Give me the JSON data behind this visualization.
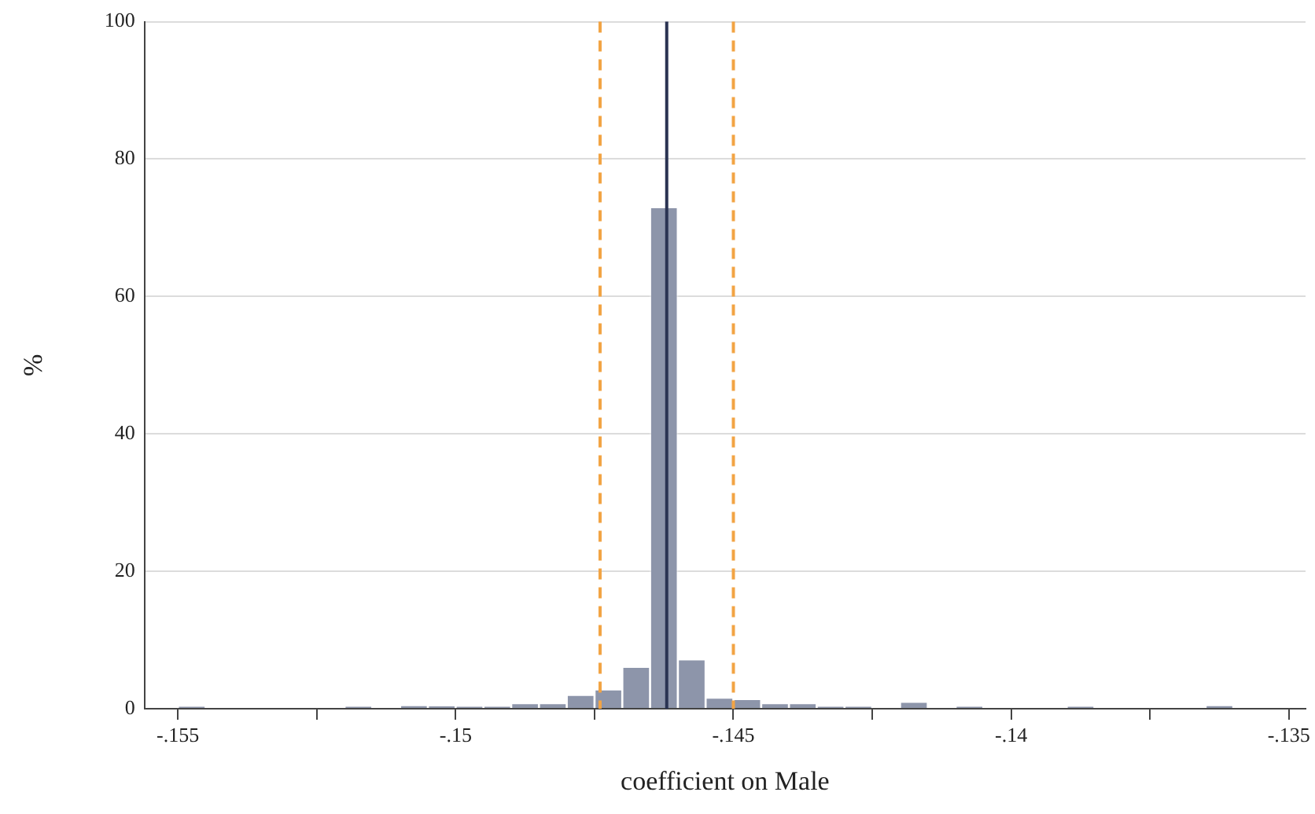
{
  "chart_data": {
    "type": "histogram",
    "xlabel": "coefficient on Male",
    "ylabel": "%",
    "bins": [
      -0.155,
      -0.1545,
      -0.154,
      -0.1535,
      -0.153,
      -0.1525,
      -0.152,
      -0.1515,
      -0.151,
      -0.1505,
      -0.15,
      -0.1495,
      -0.149,
      -0.1485,
      -0.148,
      -0.1475,
      -0.147,
      -0.1465,
      -0.146,
      -0.1455,
      -0.145,
      -0.1445,
      -0.144,
      -0.1435,
      -0.143,
      -0.1425,
      -0.142,
      -0.1415,
      -0.141,
      -0.1405,
      -0.14,
      -0.1395,
      -0.139,
      -0.1385,
      -0.138,
      -0.1375,
      -0.137,
      -0.1365,
      -0.136
    ],
    "values": [
      0.3,
      0,
      0,
      0,
      0,
      0,
      0.3,
      0,
      0.5,
      0.4,
      0.3,
      0.3,
      0.8,
      0.8,
      2,
      2.8,
      6.1,
      73,
      7.2,
      1.6,
      1.4,
      0.8,
      0.8,
      0.3,
      0.3,
      0,
      1,
      0,
      0.3,
      0,
      0,
      0,
      0.3,
      0,
      0,
      0,
      0,
      0.5
    ],
    "color": "#8d95aa",
    "xlim": [
      -0.1556,
      -0.1347
    ],
    "xticks": [
      {
        "value": -0.155,
        "label": "-.155"
      },
      {
        "value": -0.1525,
        "label": null
      },
      {
        "value": -0.15,
        "label": "-.15"
      },
      {
        "value": -0.1475,
        "label": null
      },
      {
        "value": -0.145,
        "label": "-.145"
      },
      {
        "value": -0.1425,
        "label": null
      },
      {
        "value": -0.14,
        "label": "-.14"
      },
      {
        "value": -0.1375,
        "label": null
      },
      {
        "value": -0.135,
        "label": "-.135"
      }
    ],
    "ylim": [
      0,
      100
    ],
    "yticks": [
      0,
      20,
      40,
      60,
      80,
      100
    ],
    "grid": "y",
    "ref_lines": [
      {
        "axis": "x",
        "value": -0.1462,
        "color": "#2a3352",
        "line_style": "solid"
      },
      {
        "axis": "x",
        "value": -0.1474,
        "color": "#f2a444",
        "line_style": "dashed"
      },
      {
        "axis": "x",
        "value": -0.145,
        "color": "#f2a444",
        "line_style": "dashed"
      }
    ]
  }
}
